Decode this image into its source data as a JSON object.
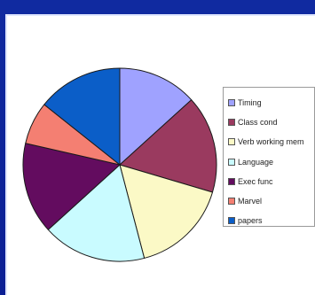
{
  "chart_data": {
    "type": "pie",
    "title": "",
    "legend_position": "right",
    "slices": [
      {
        "label": "Timing",
        "value": 13,
        "color": "#9fa2ff"
      },
      {
        "label": "Class cond",
        "value": 16,
        "color": "#9a3a5f"
      },
      {
        "label": "Verb working mem",
        "value": 16,
        "color": "#fbf9c6"
      },
      {
        "label": "Language",
        "value": 17,
        "color": "#c9fbff"
      },
      {
        "label": "Exec func",
        "value": 15,
        "color": "#630c5f"
      },
      {
        "label": "Marvel",
        "value": 7,
        "color": "#f47f72"
      },
      {
        "label": "papers",
        "value": 14,
        "color": "#0b5ec8"
      }
    ]
  }
}
